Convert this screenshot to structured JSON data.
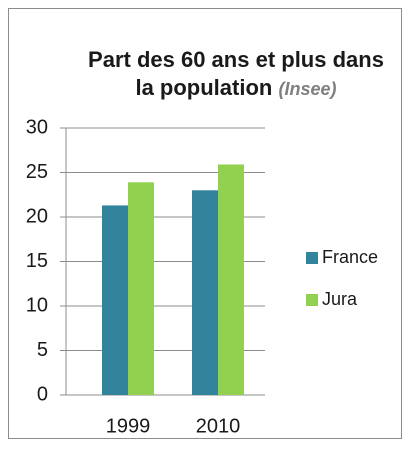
{
  "chart_data": {
    "type": "bar",
    "title": "Part des 60 ans et plus dans la population",
    "source": "(Insee)",
    "categories": [
      "1999",
      "2010"
    ],
    "series": [
      {
        "name": "France",
        "color": "#31849b",
        "values": [
          21.3,
          23.0
        ]
      },
      {
        "name": "Jura",
        "color": "#92d050",
        "values": [
          23.9,
          25.9
        ]
      }
    ],
    "ylim": [
      0,
      30
    ],
    "yticks": [
      0,
      5,
      10,
      15,
      20,
      25,
      30
    ],
    "grid": true,
    "legend": "right"
  }
}
